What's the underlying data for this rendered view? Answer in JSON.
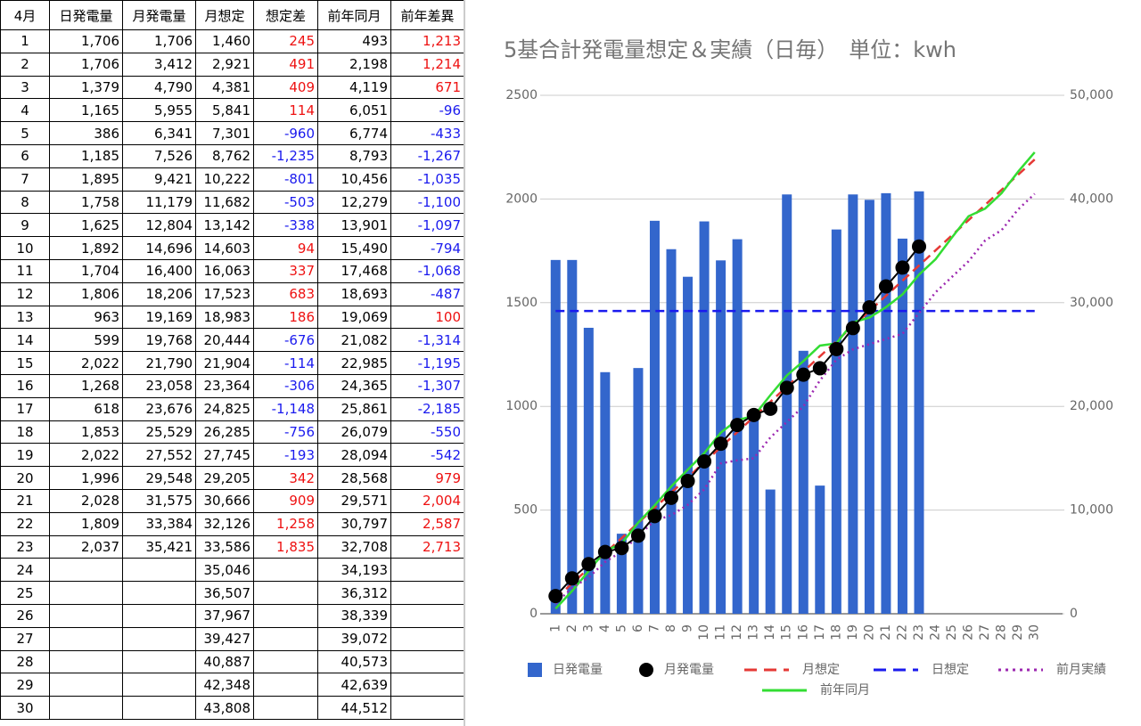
{
  "table": {
    "header": [
      "4月",
      "日発電量",
      "月発電量",
      "月想定",
      "想定差",
      "前年同月",
      "前年差異"
    ],
    "rows": [
      [
        "1",
        "1,706",
        "1,706",
        "1,460",
        "245",
        "493",
        "1,213"
      ],
      [
        "2",
        "1,706",
        "3,412",
        "2,921",
        "491",
        "2,198",
        "1,214"
      ],
      [
        "3",
        "1,379",
        "4,790",
        "4,381",
        "409",
        "4,119",
        "671"
      ],
      [
        "4",
        "1,165",
        "5,955",
        "5,841",
        "114",
        "6,051",
        "-96"
      ],
      [
        "5",
        "386",
        "6,341",
        "7,301",
        "-960",
        "6,774",
        "-433"
      ],
      [
        "6",
        "1,185",
        "7,526",
        "8,762",
        "-1,235",
        "8,793",
        "-1,267"
      ],
      [
        "7",
        "1,895",
        "9,421",
        "10,222",
        "-801",
        "10,456",
        "-1,035"
      ],
      [
        "8",
        "1,758",
        "11,179",
        "11,682",
        "-503",
        "12,279",
        "-1,100"
      ],
      [
        "9",
        "1,625",
        "12,804",
        "13,142",
        "-338",
        "13,901",
        "-1,097"
      ],
      [
        "10",
        "1,892",
        "14,696",
        "14,603",
        "94",
        "15,490",
        "-794"
      ],
      [
        "11",
        "1,704",
        "16,400",
        "16,063",
        "337",
        "17,468",
        "-1,068"
      ],
      [
        "12",
        "1,806",
        "18,206",
        "17,523",
        "683",
        "18,693",
        "-487"
      ],
      [
        "13",
        "963",
        "19,169",
        "18,983",
        "186",
        "19,069",
        "100"
      ],
      [
        "14",
        "599",
        "19,768",
        "20,444",
        "-676",
        "21,082",
        "-1,314"
      ],
      [
        "15",
        "2,022",
        "21,790",
        "21,904",
        "-114",
        "22,985",
        "-1,195"
      ],
      [
        "16",
        "1,268",
        "23,058",
        "23,364",
        "-306",
        "24,365",
        "-1,307"
      ],
      [
        "17",
        "618",
        "23,676",
        "24,825",
        "-1,148",
        "25,861",
        "-2,185"
      ],
      [
        "18",
        "1,853",
        "25,529",
        "26,285",
        "-756",
        "26,079",
        "-550"
      ],
      [
        "19",
        "2,022",
        "27,552",
        "27,745",
        "-193",
        "28,094",
        "-542"
      ],
      [
        "20",
        "1,996",
        "29,548",
        "29,205",
        "342",
        "28,568",
        "979"
      ],
      [
        "21",
        "2,028",
        "31,575",
        "30,666",
        "909",
        "29,571",
        "2,004"
      ],
      [
        "22",
        "1,809",
        "33,384",
        "32,126",
        "1,258",
        "30,797",
        "2,587"
      ],
      [
        "23",
        "2,037",
        "35,421",
        "33,586",
        "1,835",
        "32,708",
        "2,713"
      ],
      [
        "24",
        null,
        null,
        "35,046",
        null,
        "34,193",
        null
      ],
      [
        "25",
        null,
        null,
        "36,507",
        null,
        "36,312",
        null
      ],
      [
        "26",
        null,
        null,
        "37,967",
        null,
        "38,339",
        null
      ],
      [
        "27",
        null,
        null,
        "39,427",
        null,
        "39,072",
        null
      ],
      [
        "28",
        null,
        null,
        "40,887",
        null,
        "40,573",
        null
      ],
      [
        "29",
        null,
        null,
        "42,348",
        null,
        "42,639",
        null
      ],
      [
        "30",
        null,
        null,
        "43,808",
        null,
        "44,512",
        null
      ]
    ]
  },
  "chart_data": {
    "type": "combo",
    "title": "5基合計発電量想定＆実績（日毎）　単位：kwh",
    "categories": [
      "1",
      "2",
      "3",
      "4",
      "5",
      "6",
      "7",
      "8",
      "9",
      "10",
      "11",
      "12",
      "13",
      "14",
      "15",
      "16",
      "17",
      "18",
      "19",
      "20",
      "21",
      "22",
      "23",
      "24",
      "25",
      "26",
      "27",
      "28",
      "29",
      "30"
    ],
    "ylim": [
      0,
      2500
    ],
    "yticks": [
      0,
      500,
      1000,
      1500,
      2000,
      2500
    ],
    "y2lim": [
      0,
      50000
    ],
    "y2ticks": [
      0,
      {
        "value": 10000,
        "label": "10,000"
      },
      {
        "value": 20000,
        "label": "20,000"
      },
      {
        "value": 30000,
        "label": "30,000"
      },
      {
        "value": 40000,
        "label": "40,000"
      },
      {
        "value": 50000,
        "label": "50,000"
      }
    ],
    "grid": true,
    "legend": "bottom",
    "series": [
      {
        "name": "日発電量",
        "type": "bar",
        "color": "#3366cc",
        "values": [
          1706,
          1706,
          1379,
          1165,
          386,
          1185,
          1895,
          1758,
          1625,
          1892,
          1704,
          1806,
          963,
          599,
          2022,
          1268,
          618,
          1853,
          2022,
          1996,
          2028,
          1809,
          2037,
          null,
          null,
          null,
          null,
          null,
          null,
          null
        ]
      },
      {
        "name": "月発電量",
        "type": "line-dots",
        "color": "#000000",
        "axis": "y2",
        "values": [
          1706,
          3412,
          4790,
          5955,
          6341,
          7526,
          9421,
          11179,
          12804,
          14696,
          16400,
          18206,
          19169,
          19768,
          21790,
          23058,
          23676,
          25529,
          27552,
          29548,
          31575,
          33384,
          35421,
          null,
          null,
          null,
          null,
          null,
          null,
          null
        ]
      },
      {
        "name": "月想定",
        "type": "dashed",
        "color": "#e53935",
        "axis": "y2",
        "values": [
          1460,
          2921,
          4381,
          5841,
          7301,
          8762,
          10222,
          11682,
          13142,
          14603,
          16063,
          17523,
          18983,
          20444,
          21904,
          23364,
          24825,
          26285,
          27745,
          29205,
          30666,
          32126,
          33586,
          35046,
          36507,
          37967,
          39427,
          40887,
          42348,
          43808
        ]
      },
      {
        "name": "日想定",
        "type": "dashed",
        "color": "#1a1aee",
        "values": [
          1460,
          1460,
          1460,
          1460,
          1460,
          1460,
          1460,
          1460,
          1460,
          1460,
          1460,
          1460,
          1460,
          1460,
          1460,
          1460,
          1460,
          1460,
          1460,
          1460,
          1460,
          1460,
          1460,
          1460,
          1460,
          1460,
          1460,
          1460,
          1460,
          1460
        ]
      },
      {
        "name": "前月実績",
        "type": "dotted",
        "color": "#9c27b0",
        "axis": "y2",
        "values": [
          1000,
          2500,
          3500,
          5000,
          6000,
          7500,
          9000,
          9500,
          10500,
          12000,
          14500,
          14800,
          15000,
          17000,
          18500,
          20000,
          22500,
          24500,
          25500,
          26000,
          26500,
          27000,
          29000,
          31000,
          32500,
          34000,
          36000,
          37000,
          39000,
          40500
        ]
      },
      {
        "name": "前年同月",
        "type": "line",
        "color": "#33dd33",
        "axis": "y2",
        "values": [
          493,
          2198,
          4119,
          6051,
          6774,
          8793,
          10456,
          12279,
          13901,
          15490,
          17468,
          18693,
          19069,
          21082,
          22985,
          24365,
          25861,
          26079,
          28094,
          28568,
          29571,
          30797,
          32708,
          34193,
          36312,
          38339,
          39072,
          40573,
          42639,
          44512
        ]
      }
    ]
  }
}
